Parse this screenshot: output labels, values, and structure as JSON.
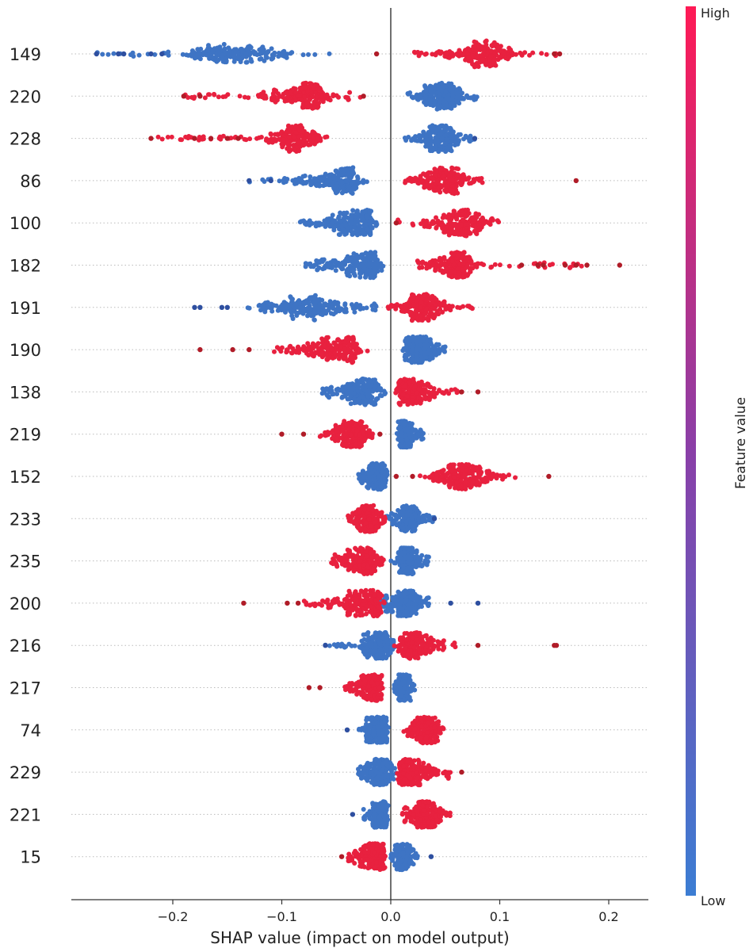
{
  "chart_data": {
    "type": "scatter",
    "subtype": "shap-beeswarm",
    "xlabel": "SHAP value (impact on model output)",
    "xlim": [
      -0.293,
      0.236
    ],
    "xticks": [
      -0.2,
      -0.1,
      0.0,
      0.1,
      0.2
    ],
    "xtick_labels": [
      "−0.2",
      "−0.1",
      "0.0",
      "0.1",
      "0.2"
    ],
    "colorbar": {
      "label": "Feature value",
      "high_label": "High",
      "low_label": "Low",
      "high_color": "#ff1a55",
      "mid_color": "#8a3fa8",
      "low_color": "#3b7dd3"
    },
    "colors": {
      "high": "#e8213f",
      "high_outlier": "#b01c28",
      "low": "#3e74c4",
      "low_outlier": "#2e4fa0"
    },
    "features": [
      {
        "name": "149",
        "low": {
          "range": [
            -0.27,
            -0.055
          ],
          "core": [
            -0.2,
            -0.055
          ],
          "peak": -0.16,
          "outliers": [
            -0.27,
            -0.25,
            -0.245,
            -0.22,
            -0.21
          ]
        },
        "high": {
          "range": [
            0.02,
            0.155
          ],
          "core": [
            0.02,
            0.13
          ],
          "peak": 0.095,
          "outliers": [
            -0.013,
            0.15,
            0.155
          ]
        }
      },
      {
        "name": "220",
        "high": {
          "range": [
            -0.19,
            -0.025
          ],
          "core": [
            -0.15,
            -0.045
          ],
          "peak": -0.07,
          "outliers": [
            -0.19,
            -0.175,
            -0.025
          ]
        },
        "low": {
          "range": [
            0.015,
            0.08
          ],
          "core": [
            0.015,
            0.075
          ],
          "peak": 0.05,
          "outliers": []
        }
      },
      {
        "name": "228",
        "high": {
          "range": [
            -0.22,
            -0.05
          ],
          "core": [
            -0.13,
            -0.05
          ],
          "peak": -0.085,
          "outliers": [
            -0.22,
            -0.18,
            -0.165,
            -0.15,
            -0.14
          ]
        },
        "low": {
          "range": [
            0.012,
            0.077
          ],
          "core": [
            0.012,
            0.07
          ],
          "peak": 0.05,
          "outliers": [
            0.077
          ]
        }
      },
      {
        "name": "86",
        "low": {
          "range": [
            -0.13,
            -0.02
          ],
          "core": [
            -0.1,
            -0.02
          ],
          "peak": -0.035,
          "outliers": [
            -0.13,
            -0.11
          ]
        },
        "high": {
          "range": [
            0.012,
            0.085
          ],
          "core": [
            0.012,
            0.085
          ],
          "peak": 0.05,
          "outliers": [
            0.17
          ]
        }
      },
      {
        "name": "100",
        "low": {
          "range": [
            -0.085,
            -0.01
          ],
          "core": [
            -0.085,
            -0.01
          ],
          "peak": -0.02,
          "outliers": []
        },
        "high": {
          "range": [
            0.005,
            0.1
          ],
          "core": [
            0.015,
            0.1
          ],
          "peak": 0.07,
          "outliers": [
            0.005
          ]
        }
      },
      {
        "name": "182",
        "low": {
          "range": [
            -0.08,
            -0.005
          ],
          "core": [
            -0.08,
            -0.005
          ],
          "peak": -0.015,
          "outliers": []
        },
        "high": {
          "range": [
            0.015,
            0.18
          ],
          "core": [
            0.015,
            0.085
          ],
          "peak": 0.065,
          "outliers": [
            0.12,
            0.135,
            0.14,
            0.16,
            0.17,
            0.18,
            0.21
          ]
        }
      },
      {
        "name": "191",
        "low": {
          "range": [
            -0.135,
            -0.005
          ],
          "core": [
            -0.135,
            -0.005
          ],
          "peak": -0.08,
          "outliers": [
            -0.18,
            -0.175,
            -0.155,
            -0.15
          ]
        },
        "high": {
          "range": [
            -0.003,
            0.075
          ],
          "core": [
            -0.003,
            0.06
          ],
          "peak": 0.03,
          "outliers": []
        }
      },
      {
        "name": "190",
        "high": {
          "range": [
            -0.11,
            -0.01
          ],
          "core": [
            -0.11,
            -0.02
          ],
          "peak": -0.035,
          "outliers": [
            -0.175,
            -0.145,
            -0.13
          ]
        },
        "low": {
          "range": [
            0.005,
            0.05
          ],
          "core": [
            0.005,
            0.05
          ],
          "peak": 0.025,
          "outliers": []
        }
      },
      {
        "name": "138",
        "low": {
          "range": [
            -0.065,
            -0.005
          ],
          "core": [
            -0.065,
            -0.005
          ],
          "peak": -0.02,
          "outliers": []
        },
        "high": {
          "range": [
            0.002,
            0.065
          ],
          "core": [
            0.002,
            0.055
          ],
          "peak": 0.01,
          "outliers": [
            0.065,
            0.08
          ]
        }
      },
      {
        "name": "219",
        "high": {
          "range": [
            -0.065,
            -0.015
          ],
          "core": [
            -0.065,
            -0.015
          ],
          "peak": -0.03,
          "outliers": [
            -0.1,
            -0.08,
            -0.01
          ]
        },
        "low": {
          "range": [
            0.005,
            0.03
          ],
          "core": [
            0.005,
            0.03
          ],
          "peak": 0.01,
          "outliers": []
        }
      },
      {
        "name": "152",
        "low": {
          "range": [
            -0.03,
            -0.003
          ],
          "core": [
            -0.03,
            -0.003
          ],
          "peak": -0.008,
          "outliers": []
        },
        "high": {
          "range": [
            0.025,
            0.115
          ],
          "core": [
            0.025,
            0.115
          ],
          "peak": 0.065,
          "outliers": [
            0.005,
            0.02,
            0.145
          ]
        }
      },
      {
        "name": "233",
        "high": {
          "range": [
            -0.04,
            -0.005
          ],
          "core": [
            -0.04,
            -0.005
          ],
          "peak": -0.02,
          "outliers": []
        },
        "low": {
          "range": [
            -0.005,
            0.04
          ],
          "core": [
            -0.005,
            0.03
          ],
          "peak": 0.02,
          "outliers": [
            0.04
          ]
        }
      },
      {
        "name": "235",
        "high": {
          "range": [
            -0.055,
            -0.005
          ],
          "core": [
            -0.055,
            -0.005
          ],
          "peak": -0.02,
          "outliers": []
        },
        "low": {
          "range": [
            0.0,
            0.035
          ],
          "core": [
            0.0,
            0.035
          ],
          "peak": 0.012,
          "outliers": []
        }
      },
      {
        "name": "200",
        "high": {
          "range": [
            -0.08,
            -0.005
          ],
          "core": [
            -0.08,
            -0.005
          ],
          "peak": -0.012,
          "outliers": [
            -0.135,
            -0.095,
            -0.085
          ]
        },
        "low": {
          "range": [
            -0.01,
            0.035
          ],
          "core": [
            -0.01,
            0.035
          ],
          "peak": 0.015,
          "outliers": [
            0.055,
            0.08
          ]
        }
      },
      {
        "name": "216",
        "low": {
          "range": [
            -0.06,
            0.005
          ],
          "core": [
            -0.045,
            0.005
          ],
          "peak": -0.005,
          "outliers": [
            -0.06
          ]
        },
        "high": {
          "range": [
            0.003,
            0.06
          ],
          "core": [
            0.003,
            0.06
          ],
          "peak": 0.015,
          "outliers": [
            0.08,
            0.15,
            0.152
          ]
        }
      },
      {
        "name": "217",
        "high": {
          "range": [
            -0.045,
            -0.003
          ],
          "core": [
            -0.045,
            -0.003
          ],
          "peak": -0.015,
          "outliers": [
            -0.075,
            -0.065
          ]
        },
        "low": {
          "range": [
            0.003,
            0.022
          ],
          "core": [
            0.003,
            0.022
          ],
          "peak": 0.01,
          "outliers": []
        }
      },
      {
        "name": "74",
        "low": {
          "range": [
            -0.03,
            -0.002
          ],
          "core": [
            -0.03,
            -0.002
          ],
          "peak": -0.005,
          "outliers": [
            -0.04
          ]
        },
        "high": {
          "range": [
            0.01,
            0.05
          ],
          "core": [
            0.01,
            0.05
          ],
          "peak": 0.035,
          "outliers": []
        }
      },
      {
        "name": "229",
        "low": {
          "range": [
            -0.03,
            0.005
          ],
          "core": [
            -0.03,
            0.005
          ],
          "peak": -0.005,
          "outliers": []
        },
        "high": {
          "range": [
            0.005,
            0.055
          ],
          "core": [
            0.005,
            0.05
          ],
          "peak": 0.01,
          "outliers": [
            0.065
          ]
        }
      },
      {
        "name": "221",
        "low": {
          "range": [
            -0.025,
            -0.002
          ],
          "core": [
            -0.025,
            -0.002
          ],
          "peak": -0.005,
          "outliers": [
            -0.035
          ]
        },
        "high": {
          "range": [
            0.01,
            0.055
          ],
          "core": [
            0.01,
            0.055
          ],
          "peak": 0.03,
          "outliers": []
        }
      },
      {
        "name": "15",
        "high": {
          "range": [
            -0.04,
            -0.005
          ],
          "core": [
            -0.04,
            -0.005
          ],
          "peak": -0.008,
          "outliers": [
            -0.045
          ]
        },
        "low": {
          "range": [
            0.0,
            0.025
          ],
          "core": [
            0.0,
            0.025
          ],
          "peak": 0.008,
          "outliers": [
            0.037
          ]
        }
      }
    ]
  }
}
